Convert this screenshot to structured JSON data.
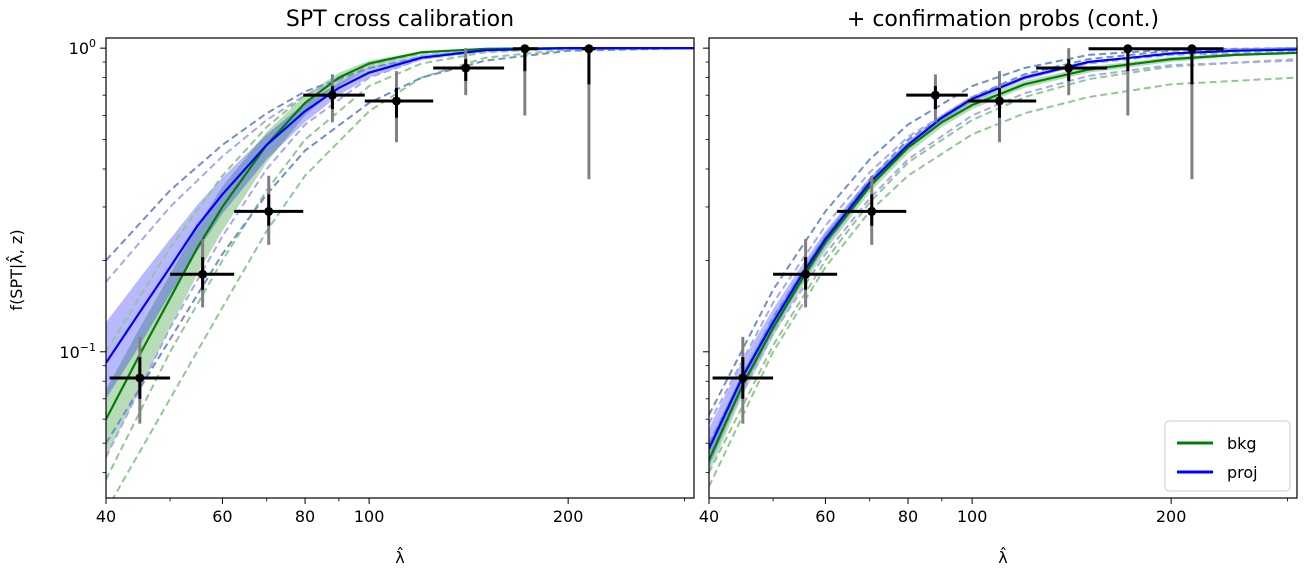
{
  "chart_data": [
    {
      "type": "line",
      "panel": "left",
      "title": "SPT cross calibration",
      "xlabel": "λ̂",
      "ylabel": "f(SPT|λ̂, z)",
      "xscale": "log",
      "yscale": "log",
      "xlim": [
        40,
        310
      ],
      "ylim": [
        0.033,
        1.08
      ],
      "xticks": [
        {
          "value": 40,
          "label": "40"
        },
        {
          "value": 60,
          "label": "60"
        },
        {
          "value": 80,
          "label": "80"
        },
        {
          "value": 100,
          "label": "100"
        },
        {
          "value": 200,
          "label": "200"
        }
      ],
      "yticks": [
        {
          "value": 1.0,
          "label": "10^0"
        },
        {
          "value": 0.1,
          "label": "10^-1"
        }
      ],
      "series": [
        {
          "name": "bkg",
          "color": "#008000",
          "x": [
            40,
            45,
            50,
            55,
            60,
            70,
            80,
            90,
            100,
            120,
            150,
            200,
            250,
            310
          ],
          "y": [
            0.06,
            0.098,
            0.15,
            0.22,
            0.3,
            0.48,
            0.66,
            0.8,
            0.89,
            0.97,
            0.995,
            1.0,
            1.0,
            1.0
          ],
          "band_lower": [
            0.045,
            0.075,
            0.12,
            0.18,
            0.25,
            0.42,
            0.6,
            0.75,
            0.86,
            0.955,
            0.99,
            1.0,
            1.0,
            1.0
          ],
          "band_upper": [
            0.075,
            0.12,
            0.18,
            0.26,
            0.35,
            0.53,
            0.7,
            0.83,
            0.91,
            0.975,
            0.997,
            1.0,
            1.0,
            1.0
          ]
        },
        {
          "name": "proj",
          "color": "#0000ff",
          "x": [
            40,
            45,
            50,
            55,
            60,
            70,
            80,
            90,
            100,
            120,
            150,
            200,
            250,
            310
          ],
          "y": [
            0.092,
            0.135,
            0.19,
            0.26,
            0.33,
            0.48,
            0.62,
            0.74,
            0.83,
            0.93,
            0.985,
            1.0,
            1.0,
            1.0
          ],
          "band_lower": [
            0.07,
            0.105,
            0.155,
            0.215,
            0.285,
            0.43,
            0.57,
            0.7,
            0.8,
            0.915,
            0.98,
            0.998,
            1.0,
            1.0
          ],
          "band_upper": [
            0.125,
            0.175,
            0.235,
            0.305,
            0.375,
            0.52,
            0.66,
            0.77,
            0.86,
            0.95,
            0.99,
            1.0,
            1.0,
            1.0
          ]
        }
      ],
      "dashed_curves": [
        {
          "color": "#90c890",
          "x": [
            40,
            50,
            60,
            70,
            80,
            100,
            120,
            150,
            200,
            310
          ],
          "y": [
            0.03,
            0.07,
            0.14,
            0.25,
            0.38,
            0.62,
            0.8,
            0.93,
            0.99,
            1.0
          ]
        },
        {
          "color": "#90c890",
          "x": [
            40,
            50,
            60,
            70,
            80,
            100,
            120,
            150,
            200,
            310
          ],
          "y": [
            0.038,
            0.1,
            0.2,
            0.34,
            0.5,
            0.75,
            0.89,
            0.97,
            1.0,
            1.0
          ]
        },
        {
          "color": "#90c890",
          "x": [
            40,
            50,
            60,
            70,
            80,
            100,
            120,
            150,
            200,
            310
          ],
          "y": [
            0.1,
            0.22,
            0.38,
            0.55,
            0.7,
            0.88,
            0.96,
            0.995,
            1.0,
            1.0
          ]
        },
        {
          "color": "#a8a8ee",
          "x": [
            40,
            50,
            60,
            70,
            80,
            100,
            120,
            150,
            200,
            310
          ],
          "y": [
            0.045,
            0.12,
            0.24,
            0.4,
            0.56,
            0.8,
            0.92,
            0.98,
            1.0,
            1.0
          ]
        },
        {
          "color": "#a8a8ee",
          "x": [
            40,
            50,
            60,
            70,
            80,
            100,
            120,
            150,
            200,
            310
          ],
          "y": [
            0.17,
            0.3,
            0.44,
            0.58,
            0.7,
            0.86,
            0.94,
            0.985,
            1.0,
            1.0
          ]
        },
        {
          "color": "#7090c8",
          "x": [
            40,
            50,
            60,
            70,
            80,
            100,
            120,
            150,
            200,
            310
          ],
          "y": [
            0.2,
            0.34,
            0.48,
            0.61,
            0.72,
            0.86,
            0.93,
            0.98,
            1.0,
            1.0
          ]
        },
        {
          "color": "#7090c8",
          "x": [
            40,
            50,
            60,
            70,
            80,
            100,
            120,
            150,
            200,
            310
          ],
          "y": [
            0.05,
            0.11,
            0.21,
            0.33,
            0.46,
            0.66,
            0.8,
            0.91,
            0.98,
            1.0
          ]
        }
      ],
      "points": [
        {
          "x": 45.0,
          "y": 0.082,
          "xerr": [
            40.5,
            50.0
          ],
          "stat": [
            0.07,
            0.096
          ],
          "sys": [
            0.058,
            0.112
          ]
        },
        {
          "x": 56.0,
          "y": 0.18,
          "xerr": [
            50.0,
            62.5
          ],
          "stat": [
            0.16,
            0.205
          ],
          "sys": [
            0.14,
            0.235
          ]
        },
        {
          "x": 70.5,
          "y": 0.29,
          "xerr": [
            62.5,
            79.5
          ],
          "stat": [
            0.26,
            0.33
          ],
          "sys": [
            0.225,
            0.38
          ]
        },
        {
          "x": 88.0,
          "y": 0.7,
          "xerr": [
            79.5,
            98.5
          ],
          "stat": [
            0.63,
            0.75
          ],
          "sys": [
            0.57,
            0.82
          ]
        },
        {
          "x": 110.0,
          "y": 0.67,
          "xerr": [
            98.5,
            125.0
          ],
          "stat": [
            0.59,
            0.74
          ],
          "sys": [
            0.49,
            0.84
          ]
        },
        {
          "x": 140.0,
          "y": 0.86,
          "xerr": [
            125.0,
            160.0
          ],
          "stat": [
            0.78,
            0.92
          ],
          "sys": [
            0.7,
            1.0
          ]
        },
        {
          "x": 172.0,
          "y": 0.995,
          "xerr": [
            165.0,
            180.0
          ],
          "stat": [
            0.84,
            1.0
          ],
          "sys": [
            0.6,
            1.0
          ]
        },
        {
          "x": 215.0,
          "y": 0.995,
          "xerr": [
            210.0,
            220.0
          ],
          "stat": [
            0.76,
            1.0
          ],
          "sys": [
            0.37,
            1.0
          ]
        }
      ]
    },
    {
      "type": "line",
      "panel": "right",
      "title": "+ confirmation probs (cont.)",
      "xlabel": "λ̂",
      "ylabel": "",
      "xscale": "log",
      "yscale": "log",
      "xlim": [
        40,
        310
      ],
      "ylim": [
        0.033,
        1.08
      ],
      "xticks": [
        {
          "value": 40,
          "label": "40"
        },
        {
          "value": 60,
          "label": "60"
        },
        {
          "value": 80,
          "label": "80"
        },
        {
          "value": 100,
          "label": "100"
        },
        {
          "value": 200,
          "label": "200"
        }
      ],
      "yticks": [],
      "legend": {
        "position": "lower-right",
        "entries": [
          {
            "label": "bkg",
            "color": "#008000"
          },
          {
            "label": "proj",
            "color": "#0000ff"
          }
        ]
      },
      "series": [
        {
          "name": "bkg",
          "color": "#008000",
          "x": [
            40,
            45,
            50,
            55,
            60,
            70,
            80,
            90,
            100,
            120,
            150,
            200,
            250,
            310
          ],
          "y": [
            0.044,
            0.078,
            0.12,
            0.17,
            0.23,
            0.35,
            0.47,
            0.57,
            0.65,
            0.76,
            0.85,
            0.92,
            0.95,
            0.965
          ],
          "band_lower": [
            0.04,
            0.072,
            0.112,
            0.16,
            0.215,
            0.335,
            0.45,
            0.55,
            0.63,
            0.74,
            0.83,
            0.9,
            0.94,
            0.955
          ],
          "band_upper": [
            0.05,
            0.086,
            0.13,
            0.182,
            0.245,
            0.37,
            0.49,
            0.59,
            0.67,
            0.78,
            0.87,
            0.935,
            0.962,
            0.975
          ]
        },
        {
          "name": "proj",
          "color": "#0000ff",
          "x": [
            40,
            45,
            50,
            55,
            60,
            70,
            80,
            90,
            100,
            120,
            150,
            200,
            250,
            310
          ],
          "y": [
            0.048,
            0.083,
            0.125,
            0.176,
            0.235,
            0.36,
            0.48,
            0.59,
            0.68,
            0.8,
            0.9,
            0.96,
            0.98,
            0.99
          ],
          "band_lower": [
            0.042,
            0.075,
            0.116,
            0.165,
            0.222,
            0.345,
            0.465,
            0.575,
            0.665,
            0.785,
            0.89,
            0.955,
            0.975,
            0.985
          ],
          "band_upper": [
            0.056,
            0.094,
            0.138,
            0.19,
            0.25,
            0.375,
            0.495,
            0.605,
            0.695,
            0.815,
            0.91,
            0.965,
            0.985,
            0.995
          ]
        }
      ],
      "dashed_curves": [
        {
          "color": "#90c890",
          "x": [
            40,
            50,
            60,
            70,
            80,
            100,
            120,
            150,
            200,
            310
          ],
          "y": [
            0.036,
            0.1,
            0.19,
            0.29,
            0.38,
            0.52,
            0.61,
            0.69,
            0.76,
            0.8
          ]
        },
        {
          "color": "#90c890",
          "x": [
            40,
            50,
            60,
            70,
            80,
            100,
            120,
            150,
            200,
            310
          ],
          "y": [
            0.04,
            0.105,
            0.2,
            0.31,
            0.42,
            0.58,
            0.69,
            0.79,
            0.87,
            0.92
          ]
        },
        {
          "color": "#a8a8ee",
          "x": [
            40,
            50,
            60,
            70,
            80,
            100,
            120,
            150,
            200,
            310
          ],
          "y": [
            0.045,
            0.115,
            0.21,
            0.32,
            0.43,
            0.6,
            0.71,
            0.81,
            0.88,
            0.91
          ]
        },
        {
          "color": "#a8a8ee",
          "x": [
            40,
            50,
            60,
            70,
            80,
            100,
            120,
            150,
            200,
            310
          ],
          "y": [
            0.058,
            0.145,
            0.26,
            0.39,
            0.51,
            0.69,
            0.8,
            0.89,
            0.95,
            0.975
          ]
        },
        {
          "color": "#7090c8",
          "x": [
            40,
            50,
            60,
            70,
            80,
            100,
            120,
            150,
            200,
            310
          ],
          "y": [
            0.05,
            0.13,
            0.24,
            0.37,
            0.5,
            0.69,
            0.82,
            0.92,
            0.98,
            1.0
          ]
        },
        {
          "color": "#7090c8",
          "x": [
            40,
            50,
            60,
            70,
            80,
            100,
            120,
            150,
            200,
            310
          ],
          "y": [
            0.062,
            0.16,
            0.29,
            0.43,
            0.56,
            0.75,
            0.86,
            0.95,
            0.99,
            1.0
          ]
        }
      ],
      "points": [
        {
          "x": 45.0,
          "y": 0.082,
          "xerr": [
            40.5,
            50.0
          ],
          "stat": [
            0.07,
            0.096
          ],
          "sys": [
            0.058,
            0.112
          ]
        },
        {
          "x": 56.0,
          "y": 0.18,
          "xerr": [
            50.0,
            62.5
          ],
          "stat": [
            0.16,
            0.205
          ],
          "sys": [
            0.14,
            0.235
          ]
        },
        {
          "x": 70.5,
          "y": 0.29,
          "xerr": [
            62.5,
            79.5
          ],
          "stat": [
            0.26,
            0.33
          ],
          "sys": [
            0.225,
            0.38
          ]
        },
        {
          "x": 88.0,
          "y": 0.7,
          "xerr": [
            79.5,
            98.5
          ],
          "stat": [
            0.63,
            0.75
          ],
          "sys": [
            0.57,
            0.82
          ]
        },
        {
          "x": 110.0,
          "y": 0.67,
          "xerr": [
            98.5,
            125.0
          ],
          "stat": [
            0.59,
            0.74
          ],
          "sys": [
            0.49,
            0.84
          ]
        },
        {
          "x": 140.0,
          "y": 0.86,
          "xerr": [
            125.0,
            160.0
          ],
          "stat": [
            0.78,
            0.92
          ],
          "sys": [
            0.7,
            1.0
          ]
        },
        {
          "x": 172.0,
          "y": 0.995,
          "xerr": [
            150.0,
            200.0
          ],
          "stat": [
            0.84,
            1.0
          ],
          "sys": [
            0.6,
            1.0
          ]
        },
        {
          "x": 215.0,
          "y": 0.995,
          "xerr": [
            200.0,
            240.0
          ],
          "stat": [
            0.76,
            1.0
          ],
          "sys": [
            0.37,
            1.0
          ]
        }
      ]
    }
  ]
}
